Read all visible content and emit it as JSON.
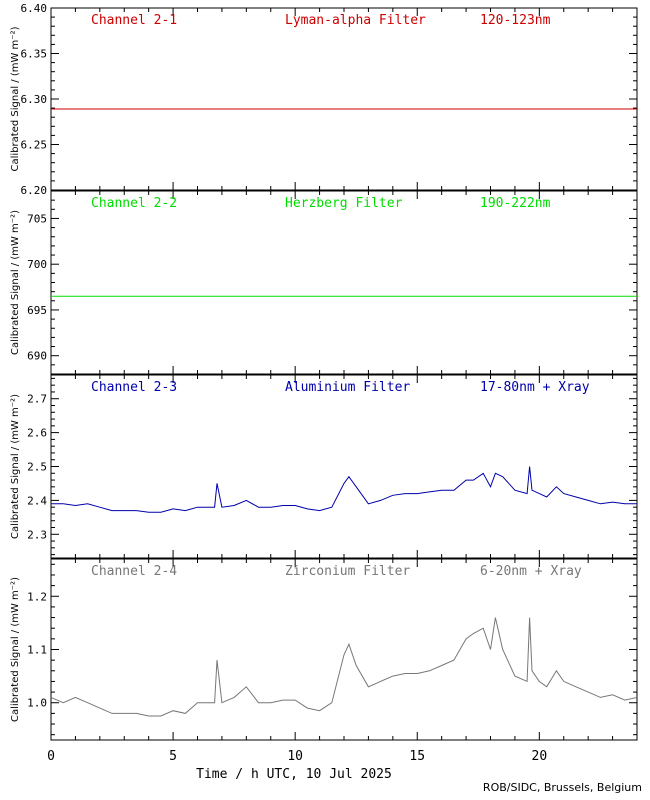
{
  "credit": "ROB/SIDC, Brussels, Belgium",
  "chart_data": [
    {
      "type": "line",
      "channel": "Channel 2-1",
      "filter": "Lyman-alpha Filter",
      "band": "120-123nm",
      "color": "#cc0000",
      "ylabel": "Calibrated Signal / (mW m⁻²)",
      "ylim": [
        6.2,
        6.4
      ],
      "yticks": [
        "6.20",
        "6.25",
        "6.30",
        "6.35",
        "6.40"
      ],
      "xlim": [
        0,
        24
      ],
      "series": [
        {
          "x": [
            0,
            2,
            4,
            6,
            8,
            10,
            12,
            14,
            16,
            18,
            20,
            22,
            24
          ],
          "y": [
            6.289,
            6.289,
            6.289,
            6.289,
            6.289,
            6.289,
            6.289,
            6.289,
            6.289,
            6.289,
            6.289,
            6.289,
            6.289
          ]
        }
      ]
    },
    {
      "type": "line",
      "channel": "Channel 2-2",
      "filter": "Herzberg Filter",
      "band": "190-222nm",
      "color": "#00dd00",
      "ylabel": "Calibrated Signal / (mW m⁻²)",
      "ylim": [
        688,
        708
      ],
      "yticks": [
        "690",
        "695",
        "700",
        "705"
      ],
      "xlim": [
        0,
        24
      ],
      "series": [
        {
          "x": [
            0,
            2,
            4,
            6,
            8,
            10,
            12,
            14,
            16,
            18,
            20,
            22,
            24
          ],
          "y": [
            696.5,
            696.5,
            696.5,
            696.5,
            696.5,
            696.5,
            696.5,
            696.5,
            696.5,
            696.5,
            696.5,
            696.5,
            696.5
          ]
        }
      ]
    },
    {
      "type": "line",
      "channel": "Channel 2-3",
      "filter": "Aluminium Filter",
      "band": "17-80nm + Xray",
      "color": "#0000aa",
      "ylabel": "Calibrated Signal / (mW m⁻²)",
      "ylim": [
        2.23,
        2.77
      ],
      "yticks": [
        "2.3",
        "2.4",
        "2.5",
        "2.6",
        "2.7"
      ],
      "xlim": [
        0,
        24
      ],
      "series": [
        {
          "x": [
            0,
            0.5,
            1,
            1.5,
            2,
            2.5,
            3,
            3.5,
            4,
            4.5,
            5,
            5.5,
            6,
            6.5,
            6.7,
            6.8,
            7,
            7.5,
            8,
            8.5,
            9,
            9.5,
            10,
            10.5,
            11,
            11.5,
            12,
            12.2,
            12.5,
            13,
            13.5,
            14,
            14.5,
            15,
            15.5,
            16,
            16.5,
            17,
            17.3,
            17.7,
            18,
            18.2,
            18.5,
            19,
            19.5,
            19.6,
            19.7,
            20,
            20.3,
            20.7,
            21,
            21.5,
            22,
            22.5,
            23,
            23.5,
            24
          ],
          "y": [
            2.39,
            2.39,
            2.385,
            2.39,
            2.38,
            2.37,
            2.37,
            2.37,
            2.365,
            2.365,
            2.375,
            2.37,
            2.38,
            2.38,
            2.38,
            2.45,
            2.38,
            2.385,
            2.4,
            2.38,
            2.38,
            2.385,
            2.385,
            2.375,
            2.37,
            2.38,
            2.45,
            2.47,
            2.44,
            2.39,
            2.4,
            2.415,
            2.42,
            2.42,
            2.425,
            2.43,
            2.43,
            2.46,
            2.46,
            2.48,
            2.44,
            2.48,
            2.47,
            2.43,
            2.42,
            2.5,
            2.43,
            2.42,
            2.41,
            2.44,
            2.42,
            2.41,
            2.4,
            2.39,
            2.395,
            2.39,
            2.39
          ]
        }
      ]
    },
    {
      "type": "line",
      "channel": "Channel 2-4",
      "filter": "Zirconium Filter",
      "band": "6-20nm + Xray",
      "color": "#777777",
      "ylabel": "Calibrated Signal / (mW m⁻²)",
      "ylim": [
        0.93,
        1.27
      ],
      "yticks": [
        "1.0",
        "1.1",
        "1.2"
      ],
      "xlim": [
        0,
        24
      ],
      "xticks": [
        "0",
        "5",
        "10",
        "15",
        "20"
      ],
      "xlabel": "Time / h UTC, 10 Jul 2025",
      "series": [
        {
          "x": [
            0,
            0.5,
            1,
            1.5,
            2,
            2.5,
            3,
            3.5,
            4,
            4.5,
            5,
            5.5,
            6,
            6.5,
            6.7,
            6.8,
            7,
            7.5,
            8,
            8.5,
            9,
            9.5,
            10,
            10.5,
            11,
            11.5,
            12,
            12.2,
            12.5,
            13,
            13.5,
            14,
            14.5,
            15,
            15.5,
            16,
            16.5,
            17,
            17.3,
            17.7,
            18,
            18.2,
            18.5,
            19,
            19.5,
            19.6,
            19.7,
            20,
            20.3,
            20.7,
            21,
            21.5,
            22,
            22.5,
            23,
            23.5,
            24
          ],
          "y": [
            1.01,
            1.0,
            1.01,
            1.0,
            0.99,
            0.98,
            0.98,
            0.98,
            0.975,
            0.975,
            0.985,
            0.98,
            1.0,
            1.0,
            1.0,
            1.08,
            1.0,
            1.01,
            1.03,
            1.0,
            1.0,
            1.005,
            1.005,
            0.99,
            0.985,
            1.0,
            1.09,
            1.11,
            1.07,
            1.03,
            1.04,
            1.05,
            1.055,
            1.055,
            1.06,
            1.07,
            1.08,
            1.12,
            1.13,
            1.14,
            1.1,
            1.16,
            1.1,
            1.05,
            1.04,
            1.16,
            1.06,
            1.04,
            1.03,
            1.06,
            1.04,
            1.03,
            1.02,
            1.01,
            1.015,
            1.005,
            1.01
          ]
        }
      ]
    }
  ]
}
